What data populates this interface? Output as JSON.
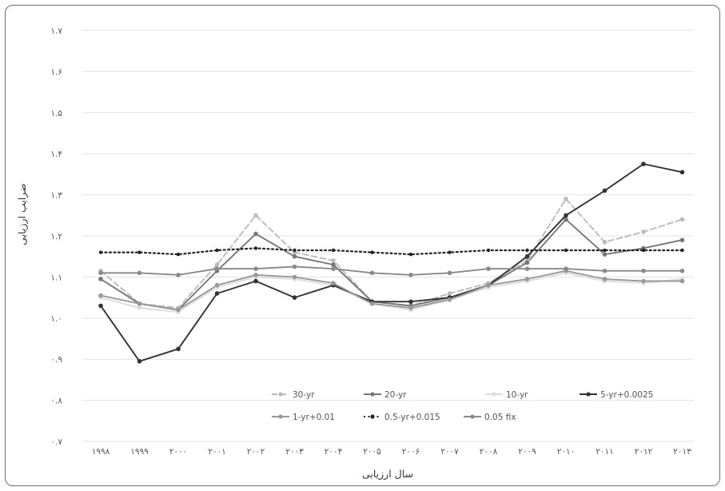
{
  "chart_data": {
    "type": "line",
    "title": "",
    "xlabel": "سال ارزیابی",
    "ylabel": "ضرایب ارزیابی",
    "ylim": [
      0.7,
      1.7
    ],
    "grid": true,
    "legend_position": "bottom-inside",
    "y_ticks": [
      0.7,
      0.8,
      0.9,
      1.0,
      1.1,
      1.2,
      1.3,
      1.4,
      1.5,
      1.6,
      1.7
    ],
    "y_tick_labels": [
      "۰.۷",
      "۰.۸",
      "۰.۹",
      "۱.۰",
      "۱.۱",
      "۱.۲",
      "۱.۳",
      "۱.۴",
      "۱.۵",
      "۱.۶",
      "۱.۷"
    ],
    "categories": [
      "1998",
      "1999",
      "2000",
      "2001",
      "2002",
      "2003",
      "2004",
      "2005",
      "2006",
      "2007",
      "2008",
      "2009",
      "2010",
      "2011",
      "2012",
      "2013"
    ],
    "category_labels": [
      "۱۹۹۸",
      "۱۹۹۹",
      "۲۰۰۰",
      "۲۰۰۱",
      "۲۰۰۲",
      "۲۰۰۳",
      "۲۰۰۴",
      "۲۰۰۵",
      "۲۰۰۶",
      "۲۰۰۷",
      "۲۰۰۸",
      "۲۰۰۹",
      "۲۰۱۰",
      "۲۰۱۱",
      "۲۰۱۲",
      "۲۰۱۳"
    ],
    "series": [
      {
        "name": "30-yr",
        "color": "#bbbbbb",
        "dash": "dashed",
        "values": [
          1.115,
          1.035,
          1.025,
          1.13,
          1.25,
          1.16,
          1.14,
          1.04,
          1.03,
          1.06,
          1.085,
          1.14,
          1.29,
          1.185,
          1.21,
          1.24
        ]
      },
      {
        "name": "20-yr",
        "color": "#777777",
        "dash": "solid",
        "values": [
          1.095,
          1.035,
          1.02,
          1.115,
          1.205,
          1.15,
          1.13,
          1.04,
          1.03,
          1.05,
          1.08,
          1.135,
          1.24,
          1.155,
          1.17,
          1.19
        ]
      },
      {
        "name": "10-yr",
        "color": "#dddddd",
        "dash": "solid",
        "values": [
          1.05,
          1.025,
          1.015,
          1.075,
          1.1,
          1.095,
          1.08,
          1.035,
          1.02,
          1.045,
          1.075,
          1.09,
          1.11,
          1.09,
          1.085,
          1.095
        ]
      },
      {
        "name": "5-yr+0.0025",
        "color": "#333333",
        "dash": "solid",
        "values": [
          1.03,
          0.895,
          0.925,
          1.06,
          1.09,
          1.05,
          1.08,
          1.04,
          1.04,
          1.05,
          1.08,
          1.15,
          1.25,
          1.31,
          1.375,
          1.355
        ]
      },
      {
        "name": "1-yr+0.01",
        "color": "#999999",
        "dash": "solid",
        "values": [
          1.055,
          1.035,
          1.02,
          1.08,
          1.105,
          1.1,
          1.085,
          1.035,
          1.025,
          1.045,
          1.08,
          1.095,
          1.115,
          1.095,
          1.09,
          1.09
        ]
      },
      {
        "name": "0.5-yr+0.015",
        "color": "#222222",
        "dash": "dotted",
        "values": [
          1.16,
          1.16,
          1.155,
          1.165,
          1.17,
          1.165,
          1.165,
          1.16,
          1.155,
          1.16,
          1.165,
          1.165,
          1.165,
          1.165,
          1.165,
          1.165
        ]
      },
      {
        "name": "0.05 fix",
        "color": "#8a8a8a",
        "dash": "solid",
        "values": [
          1.11,
          1.11,
          1.105,
          1.12,
          1.12,
          1.125,
          1.12,
          1.11,
          1.105,
          1.11,
          1.12,
          1.12,
          1.12,
          1.115,
          1.115,
          1.115
        ]
      }
    ]
  }
}
